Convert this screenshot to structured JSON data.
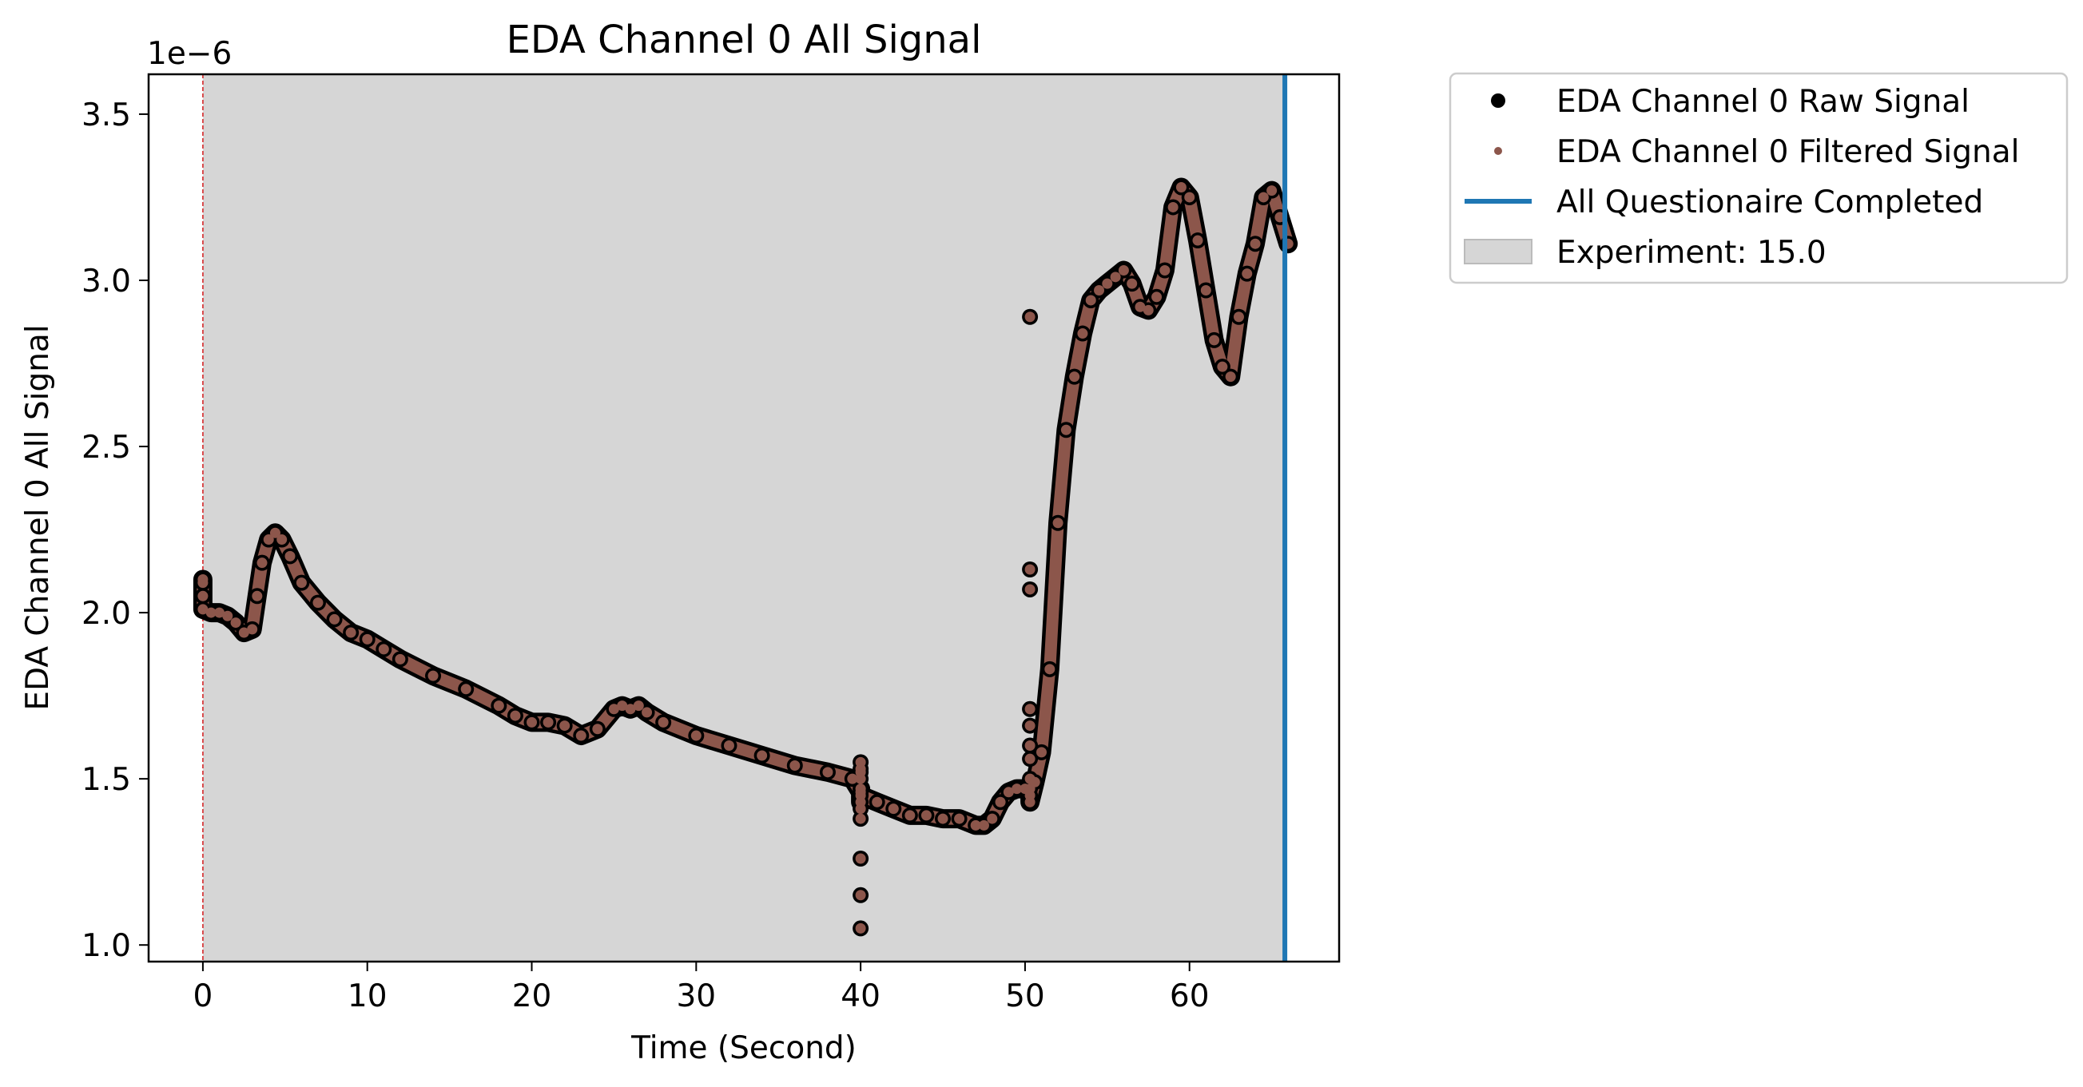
{
  "chart_data": {
    "type": "scatter",
    "title": "EDA Channel 0 All Signal",
    "xlabel": "Time (Second)",
    "ylabel": "EDA Channel 0 All Signal",
    "y_offset_label": "1e−6",
    "xlim": [
      -3.3,
      69.1
    ],
    "ylim": [
      0.95,
      3.62
    ],
    "x_ticks": [
      0,
      10,
      20,
      30,
      40,
      50,
      60
    ],
    "x_tick_labels": [
      "0",
      "10",
      "20",
      "30",
      "40",
      "50",
      "60"
    ],
    "y_ticks": [
      1.0,
      1.5,
      2.0,
      2.5,
      3.0,
      3.5
    ],
    "y_tick_labels": [
      "1.0",
      "1.5",
      "2.0",
      "2.5",
      "3.0",
      "3.5"
    ],
    "grid": false,
    "legend_placement": "outside upper right",
    "legend": [
      {
        "label": "EDA Channel 0 Raw Signal",
        "kind": "marker",
        "color": "#000000"
      },
      {
        "label": "EDA Channel 0 Filtered Signal",
        "kind": "small-marker",
        "color": "#8c564b"
      },
      {
        "label": "All Questionaire Completed",
        "kind": "line",
        "color": "#1f77b4"
      },
      {
        "label": "Experiment: 15.0",
        "kind": "patch",
        "color": "#d6d6d6"
      }
    ],
    "series": [
      {
        "name": "EDA Channel 0 Raw Signal",
        "color": "#000000",
        "points": [
          [
            0,
            2.1
          ],
          [
            0,
            2.09
          ],
          [
            0,
            2.05
          ],
          [
            0,
            2.01
          ],
          [
            0.5,
            2.0
          ],
          [
            1,
            2.0
          ],
          [
            1.5,
            1.99
          ],
          [
            2,
            1.97
          ],
          [
            2.5,
            1.94
          ],
          [
            3,
            1.95
          ],
          [
            3.3,
            2.05
          ],
          [
            3.6,
            2.15
          ],
          [
            4,
            2.22
          ],
          [
            4.4,
            2.24
          ],
          [
            4.8,
            2.22
          ],
          [
            5.3,
            2.17
          ],
          [
            6,
            2.09
          ],
          [
            7,
            2.03
          ],
          [
            8,
            1.98
          ],
          [
            9,
            1.94
          ],
          [
            10,
            1.92
          ],
          [
            11,
            1.89
          ],
          [
            12,
            1.86
          ],
          [
            14,
            1.81
          ],
          [
            16,
            1.77
          ],
          [
            18,
            1.72
          ],
          [
            19,
            1.69
          ],
          [
            20,
            1.67
          ],
          [
            21,
            1.67
          ],
          [
            22,
            1.66
          ],
          [
            23,
            1.63
          ],
          [
            24,
            1.65
          ],
          [
            25,
            1.71
          ],
          [
            25.5,
            1.72
          ],
          [
            26,
            1.71
          ],
          [
            26.5,
            1.72
          ],
          [
            27,
            1.7
          ],
          [
            28,
            1.67
          ],
          [
            30,
            1.63
          ],
          [
            32,
            1.6
          ],
          [
            34,
            1.57
          ],
          [
            36,
            1.54
          ],
          [
            38,
            1.52
          ],
          [
            39.5,
            1.5
          ],
          [
            40,
            1.46
          ],
          [
            40,
            1.43
          ],
          [
            40,
            1.55
          ],
          [
            40,
            1.53
          ],
          [
            40,
            1.52
          ],
          [
            40,
            1.5
          ],
          [
            40,
            1.47
          ],
          [
            40,
            1.45
          ],
          [
            40,
            1.41
          ],
          [
            40,
            1.38
          ],
          [
            40,
            1.26
          ],
          [
            40,
            1.15
          ],
          [
            40,
            1.05
          ],
          [
            41,
            1.43
          ],
          [
            42,
            1.41
          ],
          [
            43,
            1.39
          ],
          [
            44,
            1.39
          ],
          [
            45,
            1.38
          ],
          [
            46,
            1.38
          ],
          [
            47,
            1.36
          ],
          [
            47.5,
            1.36
          ],
          [
            48,
            1.38
          ],
          [
            48.5,
            1.43
          ],
          [
            49,
            1.46
          ],
          [
            49.5,
            1.47
          ],
          [
            50,
            1.47
          ],
          [
            50.3,
            1.47
          ],
          [
            50.3,
            2.89
          ],
          [
            50.3,
            2.13
          ],
          [
            50.3,
            2.07
          ],
          [
            50.3,
            1.71
          ],
          [
            50.3,
            1.66
          ],
          [
            50.3,
            1.6
          ],
          [
            50.3,
            1.56
          ],
          [
            50.3,
            1.5
          ],
          [
            50.3,
            1.45
          ],
          [
            50.3,
            1.43
          ],
          [
            50.6,
            1.49
          ],
          [
            51,
            1.58
          ],
          [
            51.5,
            1.83
          ],
          [
            52,
            2.27
          ],
          [
            52.5,
            2.55
          ],
          [
            53,
            2.71
          ],
          [
            53.5,
            2.84
          ],
          [
            54,
            2.94
          ],
          [
            54.5,
            2.97
          ],
          [
            55,
            2.99
          ],
          [
            55.5,
            3.01
          ],
          [
            56,
            3.03
          ],
          [
            56.5,
            2.99
          ],
          [
            57,
            2.92
          ],
          [
            57.5,
            2.91
          ],
          [
            58,
            2.95
          ],
          [
            58.5,
            3.03
          ],
          [
            59,
            3.22
          ],
          [
            59.5,
            3.28
          ],
          [
            60,
            3.25
          ],
          [
            60.5,
            3.12
          ],
          [
            61,
            2.97
          ],
          [
            61.5,
            2.82
          ],
          [
            62,
            2.74
          ],
          [
            62.5,
            2.71
          ],
          [
            63,
            2.89
          ],
          [
            63.5,
            3.02
          ],
          [
            64,
            3.11
          ],
          [
            64.5,
            3.25
          ],
          [
            65,
            3.27
          ],
          [
            65.5,
            3.19
          ],
          [
            66,
            3.11
          ]
        ]
      },
      {
        "name": "EDA Channel 0 Filtered Signal",
        "color": "#8c564b",
        "points": [
          [
            0,
            2.1
          ],
          [
            0,
            2.09
          ],
          [
            0,
            2.05
          ],
          [
            0,
            2.01
          ],
          [
            0.5,
            2.0
          ],
          [
            1,
            2.0
          ],
          [
            1.5,
            1.99
          ],
          [
            2,
            1.97
          ],
          [
            2.5,
            1.94
          ],
          [
            3,
            1.95
          ],
          [
            3.3,
            2.05
          ],
          [
            3.6,
            2.15
          ],
          [
            4,
            2.22
          ],
          [
            4.4,
            2.24
          ],
          [
            4.8,
            2.22
          ],
          [
            5.3,
            2.17
          ],
          [
            6,
            2.09
          ],
          [
            7,
            2.03
          ],
          [
            8,
            1.98
          ],
          [
            9,
            1.94
          ],
          [
            10,
            1.92
          ],
          [
            11,
            1.89
          ],
          [
            12,
            1.86
          ],
          [
            14,
            1.81
          ],
          [
            16,
            1.77
          ],
          [
            18,
            1.72
          ],
          [
            19,
            1.69
          ],
          [
            20,
            1.67
          ],
          [
            21,
            1.67
          ],
          [
            22,
            1.66
          ],
          [
            23,
            1.63
          ],
          [
            24,
            1.65
          ],
          [
            25,
            1.71
          ],
          [
            25.5,
            1.72
          ],
          [
            26,
            1.71
          ],
          [
            26.5,
            1.72
          ],
          [
            27,
            1.7
          ],
          [
            28,
            1.67
          ],
          [
            30,
            1.63
          ],
          [
            32,
            1.6
          ],
          [
            34,
            1.57
          ],
          [
            36,
            1.54
          ],
          [
            38,
            1.52
          ],
          [
            39.5,
            1.5
          ],
          [
            40,
            1.46
          ],
          [
            40,
            1.43
          ],
          [
            40,
            1.55
          ],
          [
            40,
            1.53
          ],
          [
            40,
            1.52
          ],
          [
            40,
            1.5
          ],
          [
            40,
            1.47
          ],
          [
            40,
            1.45
          ],
          [
            40,
            1.41
          ],
          [
            40,
            1.38
          ],
          [
            40,
            1.26
          ],
          [
            40,
            1.15
          ],
          [
            40,
            1.05
          ],
          [
            41,
            1.43
          ],
          [
            42,
            1.41
          ],
          [
            43,
            1.39
          ],
          [
            44,
            1.39
          ],
          [
            45,
            1.38
          ],
          [
            46,
            1.38
          ],
          [
            47,
            1.36
          ],
          [
            47.5,
            1.36
          ],
          [
            48,
            1.38
          ],
          [
            48.5,
            1.43
          ],
          [
            49,
            1.46
          ],
          [
            49.5,
            1.47
          ],
          [
            50,
            1.47
          ],
          [
            50.3,
            1.47
          ],
          [
            50.3,
            2.89
          ],
          [
            50.3,
            2.13
          ],
          [
            50.3,
            2.07
          ],
          [
            50.3,
            1.71
          ],
          [
            50.3,
            1.66
          ],
          [
            50.3,
            1.6
          ],
          [
            50.3,
            1.56
          ],
          [
            50.3,
            1.5
          ],
          [
            50.3,
            1.45
          ],
          [
            50.3,
            1.43
          ],
          [
            50.6,
            1.49
          ],
          [
            51,
            1.58
          ],
          [
            51.5,
            1.83
          ],
          [
            52,
            2.27
          ],
          [
            52.5,
            2.55
          ],
          [
            53,
            2.71
          ],
          [
            53.5,
            2.84
          ],
          [
            54,
            2.94
          ],
          [
            54.5,
            2.97
          ],
          [
            55,
            2.99
          ],
          [
            55.5,
            3.01
          ],
          [
            56,
            3.03
          ],
          [
            56.5,
            2.99
          ],
          [
            57,
            2.92
          ],
          [
            57.5,
            2.91
          ],
          [
            58,
            2.95
          ],
          [
            58.5,
            3.03
          ],
          [
            59,
            3.22
          ],
          [
            59.5,
            3.28
          ],
          [
            60,
            3.25
          ],
          [
            60.5,
            3.12
          ],
          [
            61,
            2.97
          ],
          [
            61.5,
            2.82
          ],
          [
            62,
            2.74
          ],
          [
            62.5,
            2.71
          ],
          [
            63,
            2.89
          ],
          [
            63.5,
            3.02
          ],
          [
            64,
            3.11
          ],
          [
            64.5,
            3.25
          ],
          [
            65,
            3.27
          ],
          [
            65.5,
            3.19
          ],
          [
            66,
            3.11
          ]
        ]
      }
    ],
    "span": {
      "name": "Experiment: 15.0",
      "x_start": 0,
      "x_end": 65.8,
      "color": "#d6d6d6"
    },
    "vlines": [
      {
        "name": "All Questionaire Completed",
        "x": 65.8,
        "color": "#1f77b4"
      },
      {
        "name": "start-marker",
        "x": 0,
        "color": "#d62728",
        "style": "dashed"
      }
    ]
  }
}
